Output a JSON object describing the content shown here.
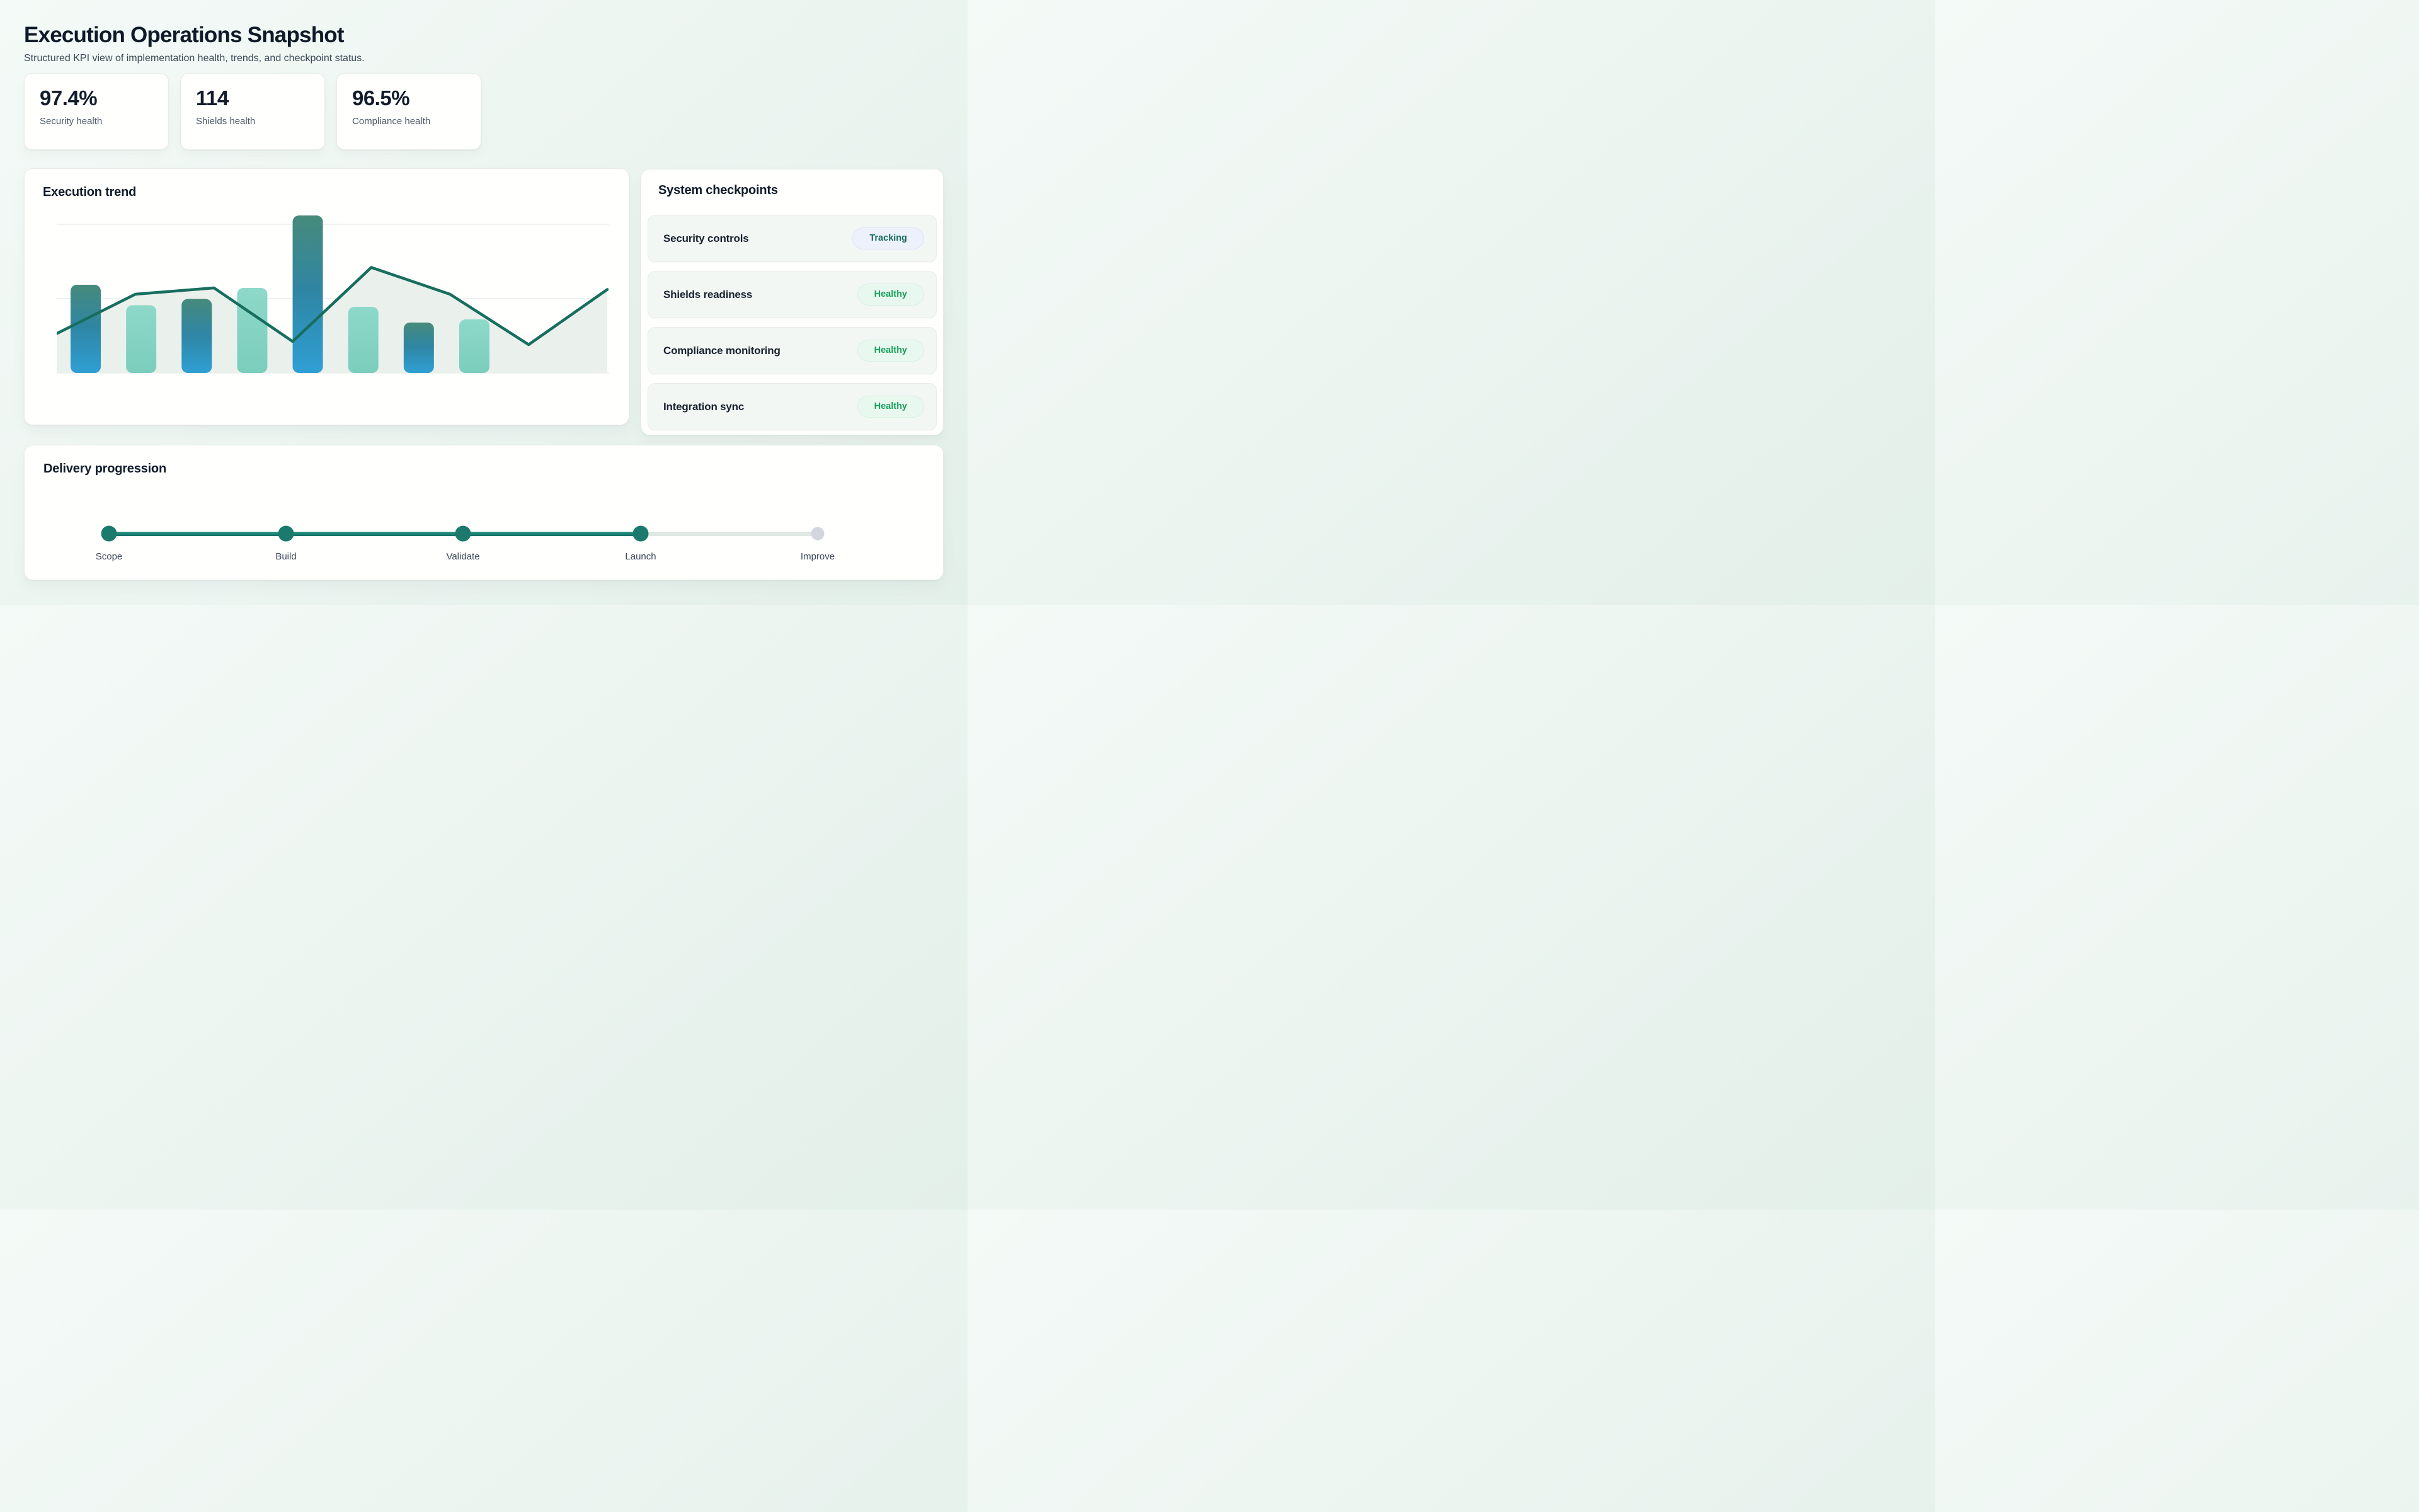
{
  "page": {
    "title": "Execution Operations Snapshot",
    "subtitle": "Structured KPI view of implementation health, trends, and checkpoint status."
  },
  "kpis": [
    {
      "value": "97.4%",
      "label": "Security health"
    },
    {
      "value": "114",
      "label": "Shields health"
    },
    {
      "value": "96.5%",
      "label": "Compliance health"
    }
  ],
  "trend_card": {
    "title": "Execution trend"
  },
  "chart_data": {
    "type": "bar+area-line combo",
    "title": "Execution trend",
    "xlabel": "",
    "ylabel": "",
    "ylim": [
      0,
      100
    ],
    "grid": "horizontal",
    "gridline_values": [
      94.4,
      47.2,
      0
    ],
    "series": [
      {
        "name": "execution-bars",
        "type": "bar",
        "values": [
          56,
          43,
          47,
          54,
          100,
          42,
          32,
          34
        ],
        "bar_styles": [
          "gradient",
          "aqua",
          "gradient",
          "aqua",
          "gradient",
          "aqua",
          "gradient",
          "aqua"
        ]
      },
      {
        "name": "trend-line",
        "type": "area-line",
        "values": [
          25,
          50,
          54,
          20,
          67,
          50,
          18,
          53
        ]
      }
    ],
    "legend": "none",
    "axis_tick_labels": "none"
  },
  "checkpoints": {
    "title": "System checkpoints",
    "items": [
      {
        "label": "Security controls",
        "status": "Tracking",
        "variant": "info"
      },
      {
        "label": "Shields readiness",
        "status": "Healthy",
        "variant": "success"
      },
      {
        "label": "Compliance monitoring",
        "status": "Healthy",
        "variant": "success"
      },
      {
        "label": "Integration sync",
        "status": "Healthy",
        "variant": "success"
      }
    ]
  },
  "delivery": {
    "title": "Delivery progression",
    "steps": [
      {
        "label": "Scope",
        "state": "complete"
      },
      {
        "label": "Build",
        "state": "complete"
      },
      {
        "label": "Validate",
        "state": "complete"
      },
      {
        "label": "Launch",
        "state": "complete"
      },
      {
        "label": "Improve",
        "state": "pending"
      }
    ]
  },
  "colors": {
    "accent_teal": "#1b7a6b",
    "line": "#176e5e",
    "area_fill": "#e8efe9",
    "gridline": "#e9edeb",
    "bar_gradient_top": "#468a7b",
    "bar_gradient_mid": "#2f86a4",
    "bar_gradient_bottom": "#2f9fd4",
    "bar_aqua_top": "#8ed9c9",
    "bar_aqua_bottom": "#7bcdbc",
    "pending_dot": "#d3d6df",
    "pending_track": "#dfe8e2",
    "badge_info_bg": "#edf1fb",
    "badge_info_text": "#156d5c",
    "badge_success_bg": "#e9f8ef",
    "badge_success_text": "#19a15d"
  }
}
